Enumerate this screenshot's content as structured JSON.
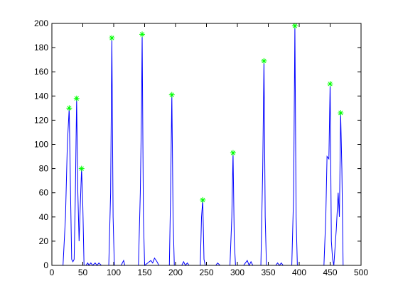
{
  "chart_data": {
    "type": "line",
    "xlim": [
      0,
      500
    ],
    "xticks": [
      0,
      50,
      100,
      150,
      200,
      250,
      300,
      350,
      400,
      450,
      500
    ],
    "ylim": [
      0,
      200
    ],
    "yticks": [
      0,
      20,
      40,
      60,
      80,
      100,
      120,
      140,
      160,
      180,
      200
    ],
    "series": [
      {
        "color": "#0000ff",
        "x": [
          18,
          22,
          25,
          28,
          30,
          32,
          34,
          36,
          38,
          40,
          42,
          44,
          46,
          48,
          50,
          52,
          55,
          58,
          60,
          63,
          66,
          70,
          73,
          76,
          80,
          92,
          95,
          97,
          99,
          101,
          112,
          116,
          118,
          140,
          143,
          145,
          146,
          148,
          150,
          155,
          160,
          163,
          166,
          170,
          173,
          190,
          192,
          194,
          196,
          198,
          210,
          213,
          216,
          219,
          222,
          240,
          242,
          244,
          246,
          248,
          265,
          268,
          272,
          288,
          291,
          293,
          295,
          297,
          310,
          313,
          316,
          319,
          322,
          325,
          338,
          341,
          343,
          345,
          347,
          362,
          365,
          368,
          371,
          374,
          388,
          391,
          393,
          395,
          397,
          440,
          443,
          445,
          448,
          450,
          452,
          454,
          456,
          460,
          463,
          465,
          467,
          469,
          471
        ],
        "values": [
          0,
          40,
          100,
          130,
          65,
          5,
          3,
          5,
          60,
          138,
          60,
          20,
          50,
          80,
          50,
          0,
          0,
          2,
          0,
          2,
          0,
          2,
          0,
          2,
          0,
          0,
          60,
          188,
          40,
          0,
          0,
          4,
          0,
          0,
          60,
          130,
          191,
          40,
          0,
          2,
          4,
          2,
          6,
          3,
          0,
          0,
          60,
          141,
          40,
          0,
          0,
          3,
          0,
          2,
          0,
          0,
          40,
          54,
          5,
          0,
          0,
          2,
          0,
          0,
          40,
          93,
          20,
          0,
          0,
          2,
          4,
          0,
          3,
          0,
          0,
          80,
          169,
          40,
          0,
          0,
          2,
          0,
          2,
          0,
          0,
          60,
          198,
          40,
          0,
          0,
          40,
          90,
          88,
          150,
          20,
          5,
          0,
          30,
          60,
          40,
          126,
          80,
          0
        ]
      },
      {
        "color": "#00ff00",
        "marker": "star",
        "x": [
          28,
          40,
          48,
          97,
          146,
          194,
          244,
          293,
          343,
          393,
          450,
          467
        ],
        "values": [
          130,
          138,
          80,
          188,
          191,
          141,
          54,
          93,
          169,
          198,
          150,
          126
        ]
      }
    ]
  }
}
